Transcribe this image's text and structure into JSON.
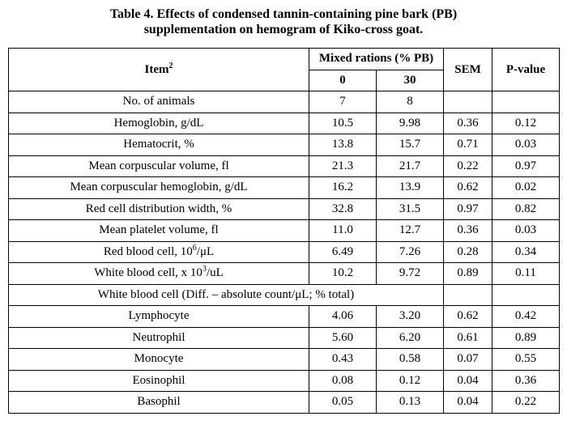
{
  "caption": {
    "line1": "Table 4. Effects of condensed tannin-containing pine bark (PB)",
    "line2": "supplementation on hemogram of Kiko-cross goat."
  },
  "header": {
    "item": "Item",
    "item_sup": "2",
    "mixed_rations": "Mixed rations (% PB)",
    "col0": "0",
    "col30": "30",
    "sem": "SEM",
    "pvalue": "P-value"
  },
  "rows": [
    {
      "item": "No. of animals",
      "v0": "7",
      "v30": "8",
      "sem": "",
      "p": ""
    },
    {
      "item": "Hemoglobin, g/dL",
      "v0": "10.5",
      "v30": "9.98",
      "sem": "0.36",
      "p": "0.12"
    },
    {
      "item": "Hematocrit, %",
      "v0": "13.8",
      "v30": "15.7",
      "sem": "0.71",
      "p": "0.03"
    },
    {
      "item": "Mean corpuscular volume, fl",
      "v0": "21.3",
      "v30": "21.7",
      "sem": "0.22",
      "p": "0.97"
    },
    {
      "item": "Mean corpuscular hemoglobin, g/dL",
      "v0": "16.2",
      "v30": "13.9",
      "sem": "0.62",
      "p": "0.02"
    },
    {
      "item": "Red cell distribution width, %",
      "v0": "32.8",
      "v30": "31.5",
      "sem": "0.97",
      "p": "0.82"
    },
    {
      "item": "Mean platelet volume, fl",
      "v0": "11.0",
      "v30": "12.7",
      "sem": "0.36",
      "p": "0.03"
    },
    {
      "item_pre": "Red blood cell, 10",
      "item_sup": "6",
      "item_post": "/μL",
      "v0": "6.49",
      "v30": "7.26",
      "sem": "0.28",
      "p": "0.34"
    },
    {
      "item_pre": "White blood cell, x 10",
      "item_sup": "3",
      "item_post": "/uL",
      "v0": "10.2",
      "v30": "9.72",
      "sem": "0.89",
      "p": "0.11"
    }
  ],
  "wbc_group_label": "White blood cell (Diff. – absolute count/μL; % total)",
  "wbc_rows": [
    {
      "item": "Lymphocyte",
      "v0": "4.06",
      "v30": "3.20",
      "sem": "0.62",
      "p": "0.42"
    },
    {
      "item": "Neutrophil",
      "v0": "5.60",
      "v30": "6.20",
      "sem": "0.61",
      "p": "0.89"
    },
    {
      "item": "Monocyte",
      "v0": "0.43",
      "v30": "0.58",
      "sem": "0.07",
      "p": "0.55"
    },
    {
      "item": "Eosinophil",
      "v0": "0.08",
      "v30": "0.12",
      "sem": "0.04",
      "p": "0.36"
    },
    {
      "item": "Basophil",
      "v0": "0.05",
      "v30": "0.13",
      "sem": "0.04",
      "p": "0.22"
    }
  ]
}
